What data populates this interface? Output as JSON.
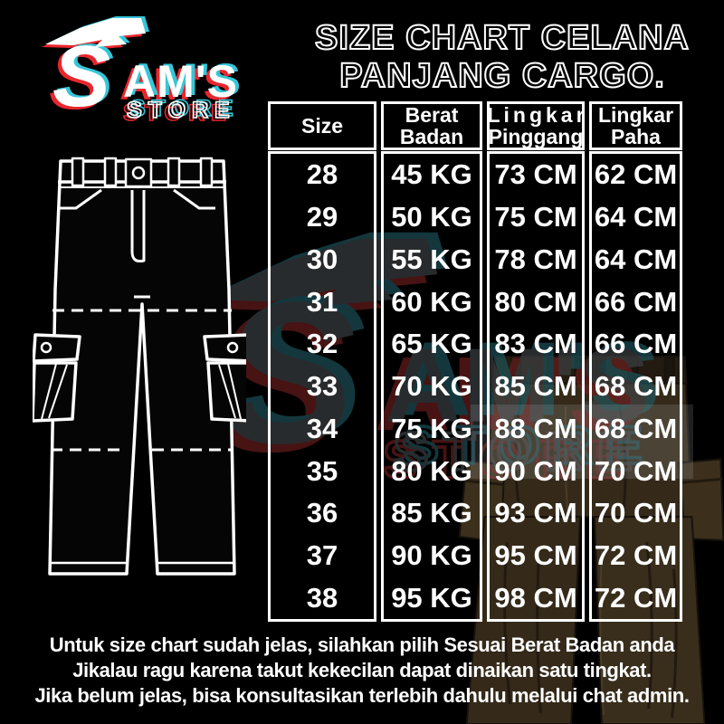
{
  "brand": {
    "s": "S",
    "am_s": "AM'S",
    "store": "STORE"
  },
  "title": {
    "line1": "SIZE CHART CELANA",
    "line2": "PANJANG CARGO."
  },
  "table": {
    "headers": [
      {
        "key": "size",
        "lines": [
          "Size"
        ]
      },
      {
        "key": "berat-badan",
        "lines": [
          "Berat",
          "Badan"
        ]
      },
      {
        "key": "lingkar-pinggang",
        "lines": [
          "Lingkar",
          "Pinggang"
        ]
      },
      {
        "key": "lingkar-paha",
        "lines": [
          "Lingkar",
          "Paha"
        ]
      }
    ],
    "rows": [
      [
        "28",
        "45 KG",
        "73 CM",
        "62 CM"
      ],
      [
        "29",
        "50 KG",
        "75 CM",
        "64 CM"
      ],
      [
        "30",
        "55 KG",
        "78 CM",
        "64 CM"
      ],
      [
        "31",
        "60 KG",
        "80 CM",
        "66 CM"
      ],
      [
        "32",
        "65 KG",
        "83 CM",
        "66 CM"
      ],
      [
        "33",
        "70 KG",
        "85 CM",
        "68 CM"
      ],
      [
        "34",
        "75 KG",
        "88 CM",
        "68 CM"
      ],
      [
        "35",
        "80 KG",
        "90 CM",
        "70 CM"
      ],
      [
        "36",
        "85 KG",
        "93 CM",
        "70 CM"
      ],
      [
        "37",
        "90 KG",
        "95 CM",
        "72 CM"
      ],
      [
        "38",
        "95 KG",
        "98 CM",
        "72 CM"
      ]
    ]
  },
  "footer": {
    "line1": "Untuk size chart sudah jelas, silahkan pilih Sesuai Berat Badan anda",
    "line2": "Jikalau ragu karena takut kekecilan dapat dinaikan satu tingkat.",
    "line3": "Jika belum jelas, bisa konsultasikan terlebih dahulu melalui chat admin."
  },
  "colors": {
    "background": "#000000",
    "text": "#ffffff",
    "table_border": "#ffffff",
    "glitch_red": "#e8262d",
    "glitch_cyan": "#35c6d9",
    "watermark_gray": "#42464a",
    "pants_brown": "#382d1c"
  }
}
